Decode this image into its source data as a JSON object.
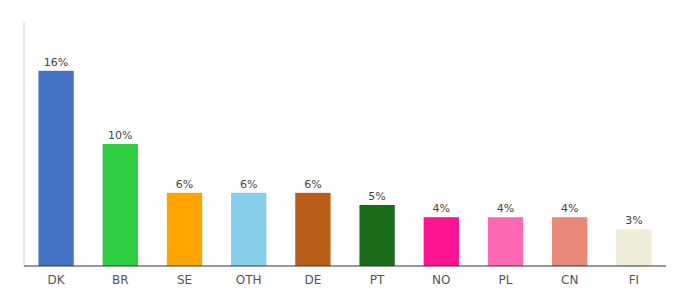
{
  "chart_data": {
    "type": "bar",
    "categories": [
      "DK",
      "BR",
      "SE",
      "OTH",
      "DE",
      "PT",
      "NO",
      "PL",
      "CN",
      "FI"
    ],
    "values": [
      16,
      10,
      6,
      6,
      6,
      5,
      4,
      4,
      4,
      3
    ],
    "value_labels": [
      "16%",
      "10%",
      "6%",
      "6%",
      "6%",
      "5%",
      "4%",
      "4%",
      "4%",
      "3%"
    ],
    "colors": [
      "#4472C4",
      "#2ECC40",
      "#FFA500",
      "#87CEEB",
      "#B8601A",
      "#1A6B1A",
      "#FF1493",
      "#FF69B4",
      "#E88878",
      "#F0EED8"
    ],
    "ylim": [
      0,
      20
    ],
    "data_labels": true,
    "tick_labels": "x",
    "grid": false
  }
}
